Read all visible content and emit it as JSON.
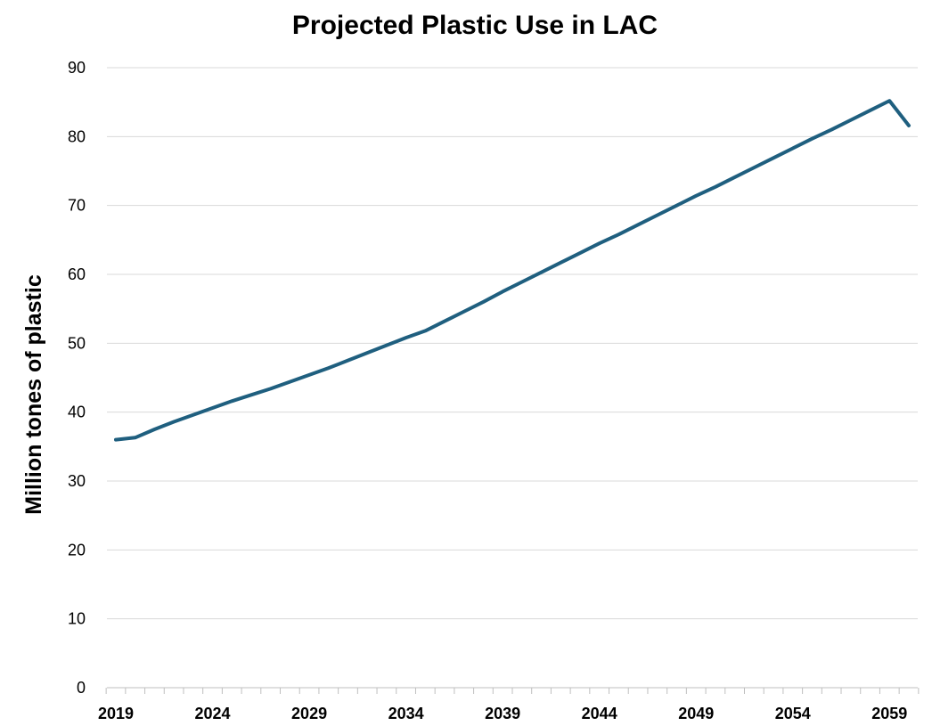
{
  "chart_data": {
    "type": "line",
    "title": "Projected Plastic Use in LAC",
    "xlabel": "",
    "ylabel": "Million tones of plastic",
    "ylim": [
      0,
      90
    ],
    "yticks": [
      "0",
      "10",
      "20",
      "30",
      "40",
      "50",
      "60",
      "70",
      "80",
      "90"
    ],
    "xlim": [
      2019,
      2060
    ],
    "xticks": [
      "2019",
      "2024",
      "2029",
      "2034",
      "2039",
      "2044",
      "2049",
      "2054",
      "2059"
    ],
    "grid": true,
    "legend": "none",
    "series": [
      {
        "color": "#1f5f7f",
        "x": [
          2019,
          2020,
          2021,
          2022,
          2023,
          2024,
          2025,
          2026,
          2027,
          2028,
          2029,
          2030,
          2031,
          2032,
          2033,
          2034,
          2035,
          2036,
          2037,
          2038,
          2039,
          2040,
          2041,
          2042,
          2043,
          2044,
          2045,
          2046,
          2047,
          2048,
          2049,
          2050,
          2051,
          2052,
          2053,
          2054,
          2055,
          2056,
          2057,
          2058,
          2059,
          2060
        ],
        "values": [
          36.0,
          36.3,
          37.5,
          38.6,
          39.6,
          40.6,
          41.6,
          42.5,
          43.4,
          44.4,
          45.4,
          46.4,
          47.5,
          48.6,
          49.7,
          50.8,
          51.8,
          53.2,
          54.6,
          56.0,
          57.5,
          58.9,
          60.3,
          61.7,
          63.1,
          64.5,
          65.8,
          67.2,
          68.6,
          70.0,
          71.4,
          72.7,
          74.1,
          75.5,
          76.9,
          78.3,
          79.7,
          81.0,
          82.4,
          83.8,
          85.2,
          81.6
        ]
      }
    ]
  }
}
